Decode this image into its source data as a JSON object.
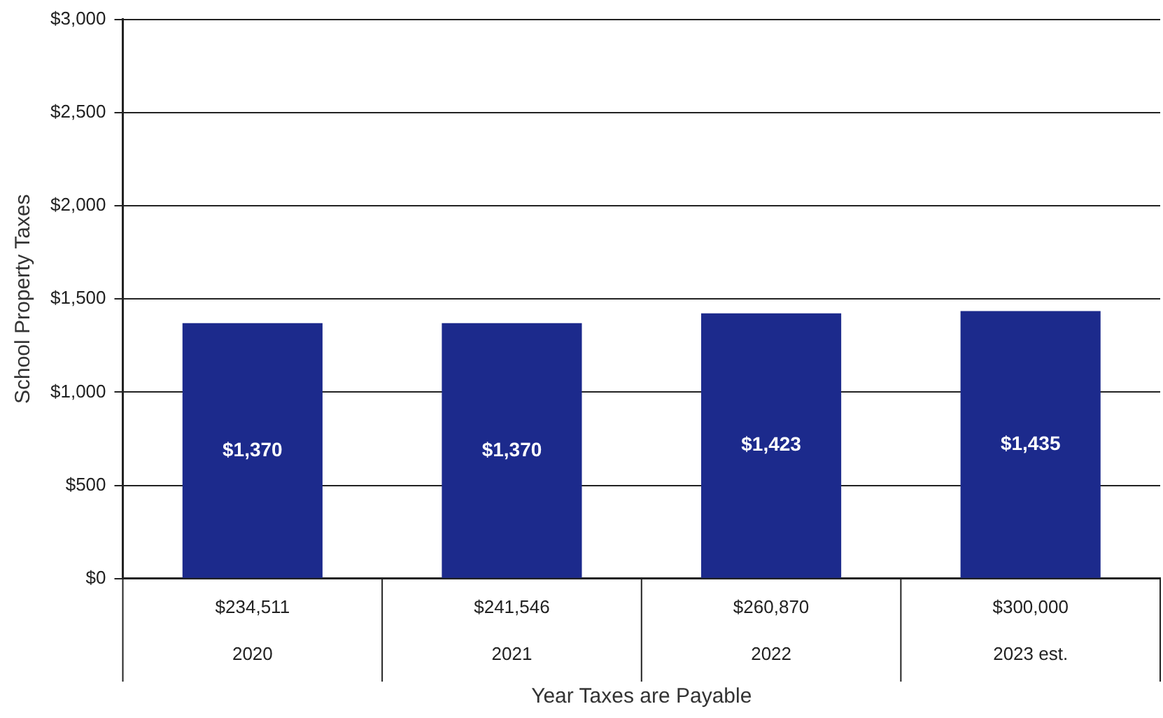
{
  "chart_data": {
    "type": "bar",
    "xlabel": "Year Taxes are Payable",
    "ylabel": "School Property Taxes",
    "categories": [
      "$234,511\n2020",
      "$241,546\n2021",
      "$260,870\n2022",
      "$300,000\n2023 est."
    ],
    "values": [
      1370,
      1370,
      1423,
      1435
    ],
    "color": "#1c2a8c",
    "value_labels": [
      "$1,370",
      "$1,370",
      "$1,423",
      "$1,435"
    ],
    "ylim": [
      0,
      3000
    ],
    "yticks": [
      {
        "value": 0,
        "label": "$0"
      },
      {
        "value": 500,
        "label": "$500"
      },
      {
        "value": 1000,
        "label": "$1,000"
      },
      {
        "value": 1500,
        "label": "$1,500"
      },
      {
        "value": 2000,
        "label": "$2,000"
      },
      {
        "value": 2500,
        "label": "$2,500"
      },
      {
        "value": 3000,
        "label": "$3,000"
      }
    ],
    "grid": "y",
    "legend": false
  }
}
